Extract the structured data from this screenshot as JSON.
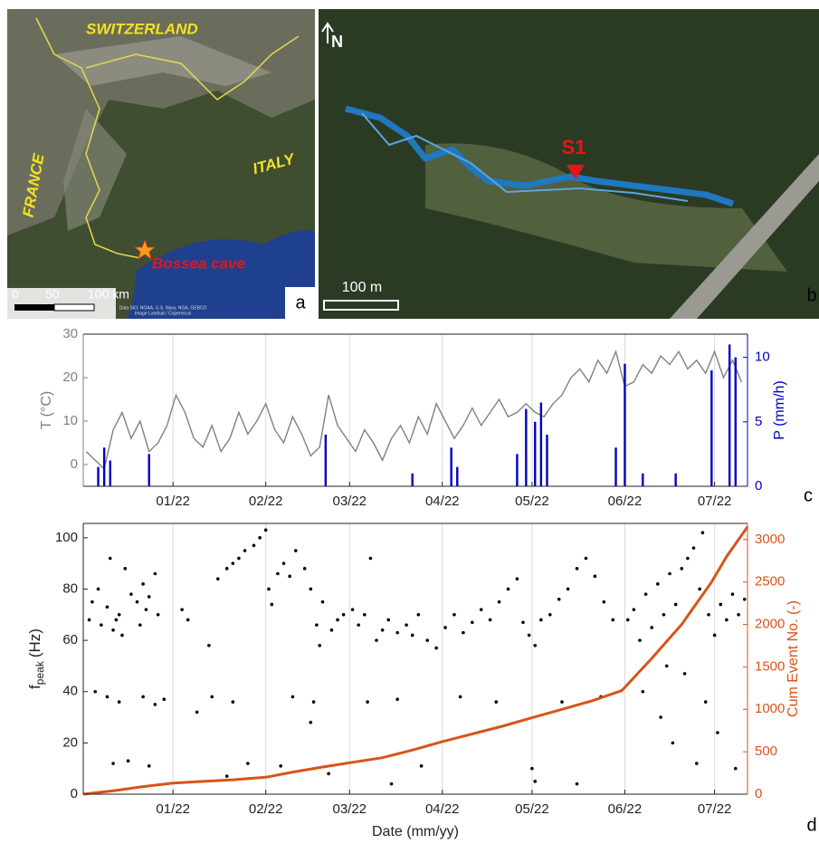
{
  "maps": {
    "a": {
      "panel_label": "a",
      "countries": [
        "SWITZERLAND",
        "FRANCE",
        "ITALY"
      ],
      "site": "Bossea cave",
      "scale": [
        "0",
        "50",
        "100 km"
      ],
      "attribution": [
        "Data SIO, NOAA, U.S. Navy, NGA, GEBCO",
        "Image Landsat / Copernicus"
      ]
    },
    "b": {
      "panel_label": "b",
      "north": "N",
      "station": "S1",
      "scale": "100 m"
    }
  },
  "chart_data": [
    {
      "type": "line",
      "panel_label": "c",
      "ylabel": "T (°C)",
      "y2label": "P (mm/h)",
      "xlim": [
        -30,
        192
      ],
      "ylim": [
        -5,
        30
      ],
      "y2lim": [
        0,
        11.8
      ],
      "grid": true,
      "xticks": [
        {
          "value": 0,
          "label": "01/22"
        },
        {
          "value": 31,
          "label": "02/22"
        },
        {
          "value": 59,
          "label": "03/22"
        },
        {
          "value": 90,
          "label": "04/22"
        },
        {
          "value": 120,
          "label": "05/22"
        },
        {
          "value": 151,
          "label": "06/22"
        },
        {
          "value": 181,
          "label": "07/22"
        }
      ],
      "yticks": [
        0,
        10,
        20,
        30
      ],
      "y2ticks": [
        0,
        5,
        10
      ],
      "series": [
        {
          "type": "line",
          "color": "#808080",
          "x": [
            -29,
            -26,
            -23,
            -20,
            -17,
            -14,
            -11,
            -8,
            -5,
            -2,
            1,
            4,
            7,
            10,
            13,
            16,
            19,
            22,
            25,
            28,
            31,
            34,
            37,
            40,
            43,
            46,
            49,
            52,
            55,
            58,
            61,
            64,
            67,
            70,
            73,
            76,
            79,
            82,
            85,
            88,
            91,
            94,
            97,
            100,
            103,
            106,
            109,
            112,
            115,
            118,
            121,
            124,
            127,
            130,
            133,
            136,
            139,
            142,
            145,
            148,
            151,
            154,
            157,
            160,
            163,
            166,
            169,
            172,
            175,
            178,
            181,
            184,
            187,
            190
          ],
          "values": [
            3,
            1,
            -1,
            8,
            12,
            6,
            10,
            3,
            5,
            9,
            16,
            12,
            6,
            4,
            9,
            3,
            6,
            12,
            7,
            10,
            14,
            8,
            5,
            11,
            7,
            2,
            4,
            16,
            9,
            6,
            3,
            8,
            5,
            1,
            6,
            9,
            5,
            11,
            7,
            14,
            10,
            6,
            9,
            13,
            9,
            12,
            15,
            11,
            12,
            14,
            12,
            11,
            14,
            16,
            20,
            22,
            19,
            24,
            21,
            26,
            18,
            19,
            23,
            21,
            25,
            23,
            26,
            22,
            24,
            21,
            26,
            20,
            24,
            19
          ]
        },
        {
          "type": "bar",
          "axis": "y2",
          "color": "#0000c0",
          "x": [
            -25,
            -23,
            -21,
            -8,
            51,
            80,
            93,
            95,
            115,
            118,
            121,
            123,
            125,
            148,
            151,
            157,
            168,
            180,
            186,
            188
          ],
          "values": [
            1.5,
            3,
            2,
            2.5,
            4,
            1,
            3,
            1.5,
            2.5,
            6,
            5,
            6.5,
            4,
            3,
            9.5,
            1,
            1,
            9,
            11,
            10
          ]
        }
      ]
    },
    {
      "type": "scatter",
      "panel_label": "d",
      "ylabel": [
        "f",
        "peak",
        "(Hz)"
      ],
      "y2label": "Cum Event No. (-)",
      "xlabel": "Date (mm/yy)",
      "xlim": [
        -30,
        192
      ],
      "ylim": [
        0,
        105.6
      ],
      "y2lim": [
        0,
        3190
      ],
      "grid": true,
      "xticks": [
        {
          "value": 0,
          "label": "01/22"
        },
        {
          "value": 31,
          "label": "02/22"
        },
        {
          "value": 59,
          "label": "03/22"
        },
        {
          "value": 90,
          "label": "04/22"
        },
        {
          "value": 120,
          "label": "05/22"
        },
        {
          "value": 151,
          "label": "06/22"
        },
        {
          "value": 181,
          "label": "07/22"
        }
      ],
      "yticks": [
        0,
        20,
        40,
        60,
        80,
        100
      ],
      "y2ticks": [
        0,
        500,
        1000,
        1500,
        2000,
        2500,
        3000
      ],
      "series": [
        {
          "type": "scatter",
          "color": "#000000",
          "x": [
            -28,
            -27,
            -25,
            -24,
            -22,
            -21,
            -20,
            -19,
            -18,
            -17,
            -16,
            -14,
            -12,
            -11,
            -10,
            -9,
            -8,
            -6,
            -5,
            -22,
            -18,
            -10,
            -6,
            -20,
            -15,
            -8,
            -26,
            -3,
            3,
            5,
            12,
            15,
            18,
            20,
            22,
            24,
            27,
            29,
            31,
            13,
            20,
            8,
            25,
            18,
            32,
            33,
            35,
            37,
            39,
            41,
            44,
            46,
            48,
            49,
            50,
            53,
            55,
            57,
            47,
            46,
            52,
            40,
            36,
            60,
            62,
            64,
            66,
            68,
            70,
            72,
            75,
            78,
            80,
            82,
            85,
            88,
            65,
            75,
            83,
            73,
            91,
            94,
            97,
            100,
            103,
            106,
            109,
            112,
            115,
            117,
            119,
            121,
            123,
            96,
            108,
            120,
            121,
            126,
            129,
            132,
            135,
            138,
            141,
            144,
            147,
            130,
            143,
            135,
            152,
            154,
            156,
            158,
            160,
            162,
            164,
            166,
            168,
            170,
            172,
            174,
            176,
            177,
            179,
            181,
            183,
            185,
            187,
            189,
            191,
            157,
            163,
            167,
            171,
            175,
            182,
            188,
            165,
            178
          ],
          "values": [
            68,
            75,
            80,
            66,
            73,
            92,
            64,
            68,
            70,
            62,
            88,
            78,
            75,
            66,
            82,
            72,
            77,
            86,
            70,
            38,
            36,
            38,
            35,
            12,
            13,
            11,
            40,
            37,
            72,
            68,
            58,
            84,
            88,
            90,
            92,
            95,
            97,
            100,
            103,
            38,
            36,
            32,
            12,
            7,
            80,
            74,
            86,
            90,
            85,
            95,
            88,
            80,
            66,
            58,
            75,
            64,
            68,
            70,
            36,
            28,
            8,
            38,
            11,
            72,
            66,
            70,
            92,
            60,
            64,
            68,
            63,
            66,
            62,
            70,
            60,
            57,
            36,
            37,
            11,
            4,
            65,
            70,
            63,
            67,
            72,
            68,
            75,
            80,
            84,
            67,
            62,
            58,
            68,
            38,
            36,
            10,
            5,
            70,
            76,
            80,
            88,
            92,
            85,
            75,
            68,
            36,
            38,
            4,
            68,
            72,
            60,
            78,
            65,
            82,
            70,
            86,
            74,
            88,
            92,
            96,
            80,
            102,
            70,
            62,
            74,
            68,
            78,
            70,
            76,
            40,
            30,
            20,
            47,
            12,
            24,
            10,
            50,
            36
          ]
        },
        {
          "type": "line",
          "axis": "y2",
          "color": "#d95319",
          "x": [
            -30,
            -20,
            -10,
            0,
            10,
            20,
            31,
            40,
            50,
            59,
            70,
            80,
            90,
            100,
            110,
            120,
            130,
            140,
            150,
            160,
            170,
            180,
            185,
            192
          ],
          "values": [
            0,
            40,
            90,
            130,
            150,
            170,
            200,
            260,
            320,
            370,
            430,
            520,
            620,
            710,
            800,
            900,
            1000,
            1100,
            1220,
            1600,
            2000,
            2500,
            2800,
            3150
          ]
        }
      ]
    }
  ]
}
